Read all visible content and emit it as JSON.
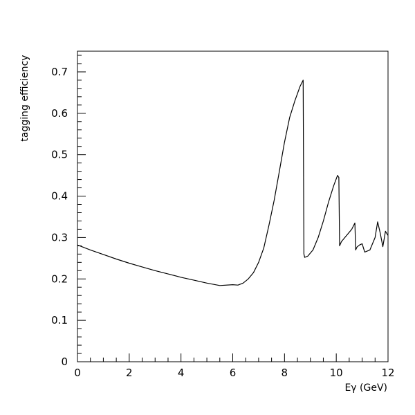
{
  "chart_data": {
    "type": "line",
    "title": "",
    "xlabel": "Eγ (GeV)",
    "ylabel": "tagging efficiency",
    "xlim": [
      0,
      12
    ],
    "ylim": [
      0,
      0.75
    ],
    "x_ticks": [
      0,
      2,
      4,
      6,
      8,
      10,
      12
    ],
    "x_tick_labels": [
      "0",
      "2",
      "4",
      "6",
      "8",
      "10",
      "12"
    ],
    "y_ticks": [
      0,
      0.1,
      0.2,
      0.3,
      0.4,
      0.5,
      0.6,
      0.7
    ],
    "y_tick_labels": [
      "0",
      "0.1",
      "0.2",
      "0.3",
      "0.4",
      "0.5",
      "0.6",
      "0.7"
    ],
    "grid": false,
    "legend": "none",
    "series": [
      {
        "color": "#000000",
        "x": [
          0,
          0.5,
          1,
          1.5,
          2,
          2.5,
          3,
          3.5,
          4,
          4.5,
          5,
          5.5,
          6,
          6.2,
          6.4,
          6.6,
          6.8,
          7.0,
          7.2,
          7.4,
          7.6,
          7.8,
          8.0,
          8.2,
          8.4,
          8.6,
          8.72,
          8.75,
          8.78,
          8.9,
          9.1,
          9.3,
          9.5,
          9.7,
          9.9,
          10.05,
          10.1,
          10.13,
          10.2,
          10.4,
          10.6,
          10.72,
          10.75,
          10.8,
          10.9,
          11.0,
          11.1,
          11.3,
          11.5,
          11.6,
          11.7,
          11.8,
          11.9,
          12.0
        ],
        "y": [
          0.282,
          0.27,
          0.259,
          0.248,
          0.238,
          0.229,
          0.22,
          0.212,
          0.204,
          0.197,
          0.19,
          0.184,
          0.186,
          0.185,
          0.19,
          0.2,
          0.215,
          0.24,
          0.275,
          0.33,
          0.39,
          0.46,
          0.53,
          0.59,
          0.63,
          0.665,
          0.68,
          0.26,
          0.252,
          0.255,
          0.27,
          0.3,
          0.34,
          0.385,
          0.425,
          0.45,
          0.445,
          0.28,
          0.29,
          0.305,
          0.32,
          0.335,
          0.27,
          0.277,
          0.282,
          0.285,
          0.265,
          0.27,
          0.3,
          0.338,
          0.31,
          0.278,
          0.315,
          0.305
        ]
      }
    ]
  }
}
